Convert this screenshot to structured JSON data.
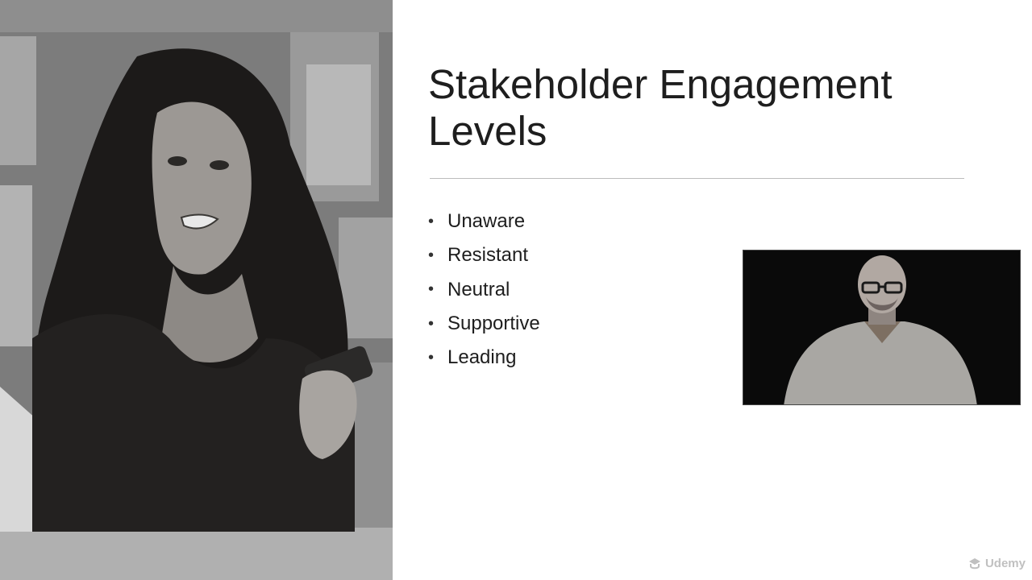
{
  "slide": {
    "title_line1": "Stakeholder Engagement",
    "title_line2": "Levels",
    "bullet_glyph": "•",
    "bullets": [
      {
        "label": "Unaware"
      },
      {
        "label": "Resistant"
      },
      {
        "label": "Neutral"
      },
      {
        "label": "Supportive"
      },
      {
        "label": "Leading"
      }
    ]
  },
  "photo": {
    "subject": "frustrated-woman-with-phone"
  },
  "webcam": {
    "subject": "presenter-video"
  },
  "watermark": {
    "brand": "Udemy",
    "icon": "udemy-logo-icon"
  },
  "colors": {
    "title": "#1e1e1e",
    "rule": "#bcbcbc",
    "background": "#ffffff"
  }
}
